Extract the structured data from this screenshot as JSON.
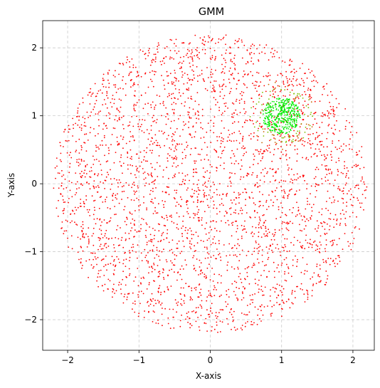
{
  "chart_data": {
    "type": "scatter",
    "title": "GMM",
    "xlabel": "X-axis",
    "ylabel": "Y-axis",
    "xlim": [
      -2.35,
      2.3
    ],
    "ylim": [
      -2.45,
      2.4
    ],
    "xticks": [
      -2,
      -1,
      0,
      1,
      2
    ],
    "yticks": [
      -2,
      -1,
      0,
      1,
      2
    ],
    "xtick_labels": [
      "−2",
      "−1",
      "0",
      "1",
      "2"
    ],
    "ytick_labels": [
      "−2",
      "−1",
      "0",
      "1",
      "2"
    ],
    "grid": true,
    "legend": "none",
    "series": [
      {
        "color": "#ff0000",
        "distribution": "uniform disk",
        "center": [
          0,
          0
        ],
        "radius": 2.2,
        "count": 3200
      },
      {
        "color": "#00ee00",
        "distribution": "dense cluster",
        "center": [
          1.0,
          1.0
        ],
        "radius": 0.27,
        "count": 380
      },
      {
        "color": "#7fbf00",
        "distribution": "ring",
        "center": [
          1.0,
          1.0
        ],
        "radius_range": [
          0.3,
          0.45
        ],
        "count": 60
      },
      {
        "color": "#c86400",
        "distribution": "ring",
        "center": [
          1.0,
          1.0
        ],
        "radius_range": [
          0.28,
          0.5
        ],
        "count": 30
      }
    ]
  }
}
